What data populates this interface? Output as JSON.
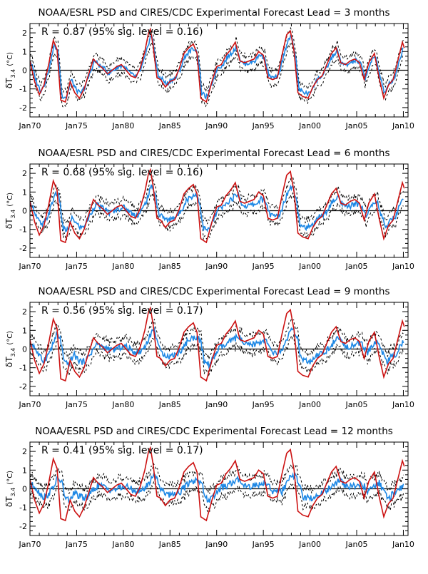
{
  "chart_data": [
    {
      "type": "line",
      "title": "NOAA/ESRL PSD and CIRES/CDC Experimental Forecast Lead = 3 months",
      "annotation": "R = 0.87 (95% sig. level = 0.16)",
      "ylabel_main": "δT",
      "ylabel_sub": "3.4",
      "ylabel_unit": "(°C)",
      "xticks": [
        1970,
        1975,
        1980,
        1985,
        1990,
        1995,
        2000,
        2005,
        2010
      ],
      "xticklabels": [
        "Jan70",
        "Jan75",
        "Jan80",
        "Jan85",
        "Jan90",
        "Jan95",
        "Jan00",
        "Jan05",
        "Jan10"
      ],
      "yticks": [
        -2,
        -1,
        0,
        1,
        2
      ],
      "yticklabels": [
        "-2",
        "-1",
        "0",
        "1",
        "2"
      ],
      "xlim": [
        1970,
        2010.5
      ],
      "ylim": [
        -2.5,
        2.5
      ],
      "lead": 3,
      "colors": {
        "observed": "#cc1111",
        "forecast": "#1e88e5",
        "bounds": "#000000"
      }
    },
    {
      "type": "line",
      "title": "NOAA/ESRL PSD and CIRES/CDC Experimental Forecast Lead = 6 months",
      "annotation": "R = 0.68 (95% sig. level = 0.16)",
      "ylabel_main": "δT",
      "ylabel_sub": "3.4",
      "ylabel_unit": "(°C)",
      "xticks": [
        1970,
        1975,
        1980,
        1985,
        1990,
        1995,
        2000,
        2005,
        2010
      ],
      "xticklabels": [
        "Jan70",
        "Jan75",
        "Jan80",
        "Jan85",
        "Jan90",
        "Jan95",
        "Jan00",
        "Jan05",
        "Jan10"
      ],
      "yticks": [
        -2,
        -1,
        0,
        1,
        2
      ],
      "yticklabels": [
        "-2",
        "-1",
        "0",
        "1",
        "2"
      ],
      "xlim": [
        1970,
        2010.5
      ],
      "ylim": [
        -2.5,
        2.5
      ],
      "lead": 6,
      "colors": {
        "observed": "#cc1111",
        "forecast": "#1e88e5",
        "bounds": "#000000"
      }
    },
    {
      "type": "line",
      "title": "NOAA/ESRL PSD and CIRES/CDC Experimental Forecast Lead = 9 months",
      "annotation": "R = 0.56 (95% sig. level = 0.17)",
      "ylabel_main": "δT",
      "ylabel_sub": "3.4",
      "ylabel_unit": "(°C)",
      "xticks": [
        1970,
        1975,
        1980,
        1985,
        1990,
        1995,
        2000,
        2005,
        2010
      ],
      "xticklabels": [
        "Jan70",
        "Jan75",
        "Jan80",
        "Jan85",
        "Jan90",
        "Jan95",
        "Jan00",
        "Jan05",
        "Jan10"
      ],
      "yticks": [
        -2,
        -1,
        0,
        1,
        2
      ],
      "yticklabels": [
        "-2",
        "-1",
        "0",
        "1",
        "2"
      ],
      "xlim": [
        1970,
        2010.5
      ],
      "ylim": [
        -2.5,
        2.5
      ],
      "lead": 9,
      "colors": {
        "observed": "#cc1111",
        "forecast": "#1e88e5",
        "bounds": "#000000"
      }
    },
    {
      "type": "line",
      "title": "NOAA/ESRL PSD and CIRES/CDC Experimental Forecast Lead = 12 months",
      "annotation": "R = 0.41 (95% sig. level = 0.17)",
      "ylabel_main": "δT",
      "ylabel_sub": "3.4",
      "ylabel_unit": "(°C)",
      "xticks": [
        1970,
        1975,
        1980,
        1985,
        1990,
        1995,
        2000,
        2005,
        2010
      ],
      "xticklabels": [
        "Jan70",
        "Jan75",
        "Jan80",
        "Jan85",
        "Jan90",
        "Jan95",
        "Jan00",
        "Jan05",
        "Jan10"
      ],
      "yticks": [
        -2,
        -1,
        0,
        1,
        2
      ],
      "yticklabels": [
        "-2",
        "-1",
        "0",
        "1",
        "2"
      ],
      "xlim": [
        1970,
        2010.5
      ],
      "ylim": [
        -2.5,
        2.5
      ],
      "lead": 12,
      "colors": {
        "observed": "#cc1111",
        "forecast": "#1e88e5",
        "bounds": "#000000"
      }
    }
  ],
  "observed_anomaly": {
    "x": [
      1970.0,
      1970.5,
      1971.0,
      1971.5,
      1972.0,
      1972.5,
      1972.9,
      1973.3,
      1973.8,
      1974.3,
      1974.8,
      1975.3,
      1975.8,
      1976.3,
      1976.8,
      1977.3,
      1977.8,
      1978.3,
      1978.8,
      1979.3,
      1979.8,
      1980.3,
      1980.8,
      1981.3,
      1981.8,
      1982.3,
      1982.7,
      1982.9,
      1983.2,
      1983.6,
      1984.0,
      1984.5,
      1985.0,
      1985.5,
      1986.0,
      1986.5,
      1987.0,
      1987.5,
      1987.9,
      1988.3,
      1988.9,
      1989.5,
      1990.0,
      1990.5,
      1991.0,
      1991.5,
      1992.0,
      1992.5,
      1993.0,
      1993.5,
      1994.0,
      1994.5,
      1995.0,
      1995.5,
      1996.0,
      1996.5,
      1997.0,
      1997.5,
      1997.9,
      1998.3,
      1998.7,
      1999.2,
      1999.8,
      2000.3,
      2000.8,
      2001.3,
      2001.8,
      2002.3,
      2002.8,
      2003.3,
      2003.8,
      2004.3,
      2004.8,
      2005.3,
      2005.8,
      2006.3,
      2006.9,
      2007.4,
      2007.9,
      2008.4,
      2008.9,
      2009.4,
      2009.9,
      2010.1
    ],
    "y": [
      0.5,
      -0.6,
      -1.3,
      -0.8,
      0.3,
      1.6,
      1.1,
      -1.6,
      -1.7,
      -0.6,
      -1.2,
      -1.5,
      -1.0,
      -0.2,
      0.6,
      0.3,
      0.1,
      -0.2,
      0.0,
      0.2,
      0.3,
      0.0,
      -0.3,
      -0.4,
      0.1,
      1.0,
      2.0,
      2.2,
      1.3,
      -0.4,
      -0.5,
      -0.9,
      -0.6,
      -0.5,
      0.1,
      0.9,
      1.2,
      1.4,
      0.9,
      -1.5,
      -1.7,
      -0.6,
      0.2,
      0.3,
      0.8,
      1.1,
      1.5,
      0.5,
      0.4,
      0.5,
      0.6,
      1.0,
      0.8,
      -0.4,
      -0.5,
      -0.4,
      0.8,
      1.9,
      2.1,
      1.0,
      -1.2,
      -1.4,
      -1.5,
      -0.9,
      -0.5,
      -0.3,
      0.3,
      0.9,
      1.2,
      0.4,
      0.3,
      0.5,
      0.6,
      0.4,
      -0.5,
      0.4,
      0.9,
      -0.4,
      -1.5,
      -0.8,
      -0.5,
      0.5,
      1.5,
      1.2
    ]
  }
}
